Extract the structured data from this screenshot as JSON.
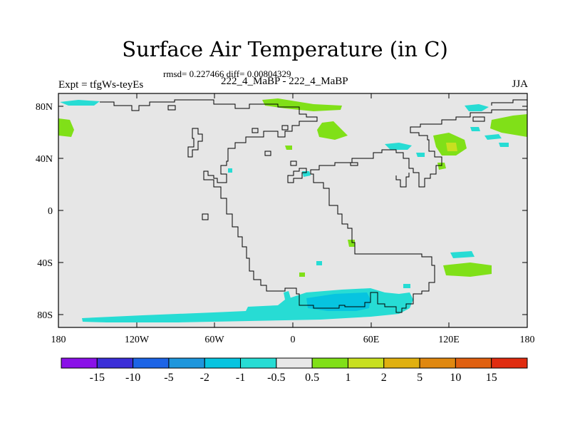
{
  "title": "Surface Air Temperature (in C)",
  "stats": "rmsd= 0.227466 diff= 0.00804329",
  "experiment": "Expt = tfgWs-teyEs",
  "difference_label": "222_4_MaBP - 222_4_MaBP",
  "season": "JJA",
  "x_ticks": [
    "180",
    "120W",
    "60W",
    "0",
    "60E",
    "120E",
    "180"
  ],
  "y_ticks": [
    "80N",
    "40N",
    "0",
    "40S",
    "80S"
  ],
  "colorbar": {
    "colors": [
      "#8a11e8",
      "#3b2ed8",
      "#1c64e6",
      "#1e96dc",
      "#07c4e0",
      "#27dcd4",
      "#e8e8e8",
      "#80e018",
      "#c8e020",
      "#e0b010",
      "#e08810",
      "#e06010",
      "#e02c10"
    ],
    "labels": [
      "-15",
      "-10",
      "-5",
      "-2",
      "-1",
      "-0.5",
      "0.5",
      "1",
      "2",
      "5",
      "10",
      "15"
    ]
  },
  "colors": {
    "ocean": "#e6e6e6",
    "cyan": "#27dcd4",
    "teal": "#07c4e0",
    "green": "#80e018",
    "yellow": "#c8e020",
    "orange": "#e0b010"
  }
}
